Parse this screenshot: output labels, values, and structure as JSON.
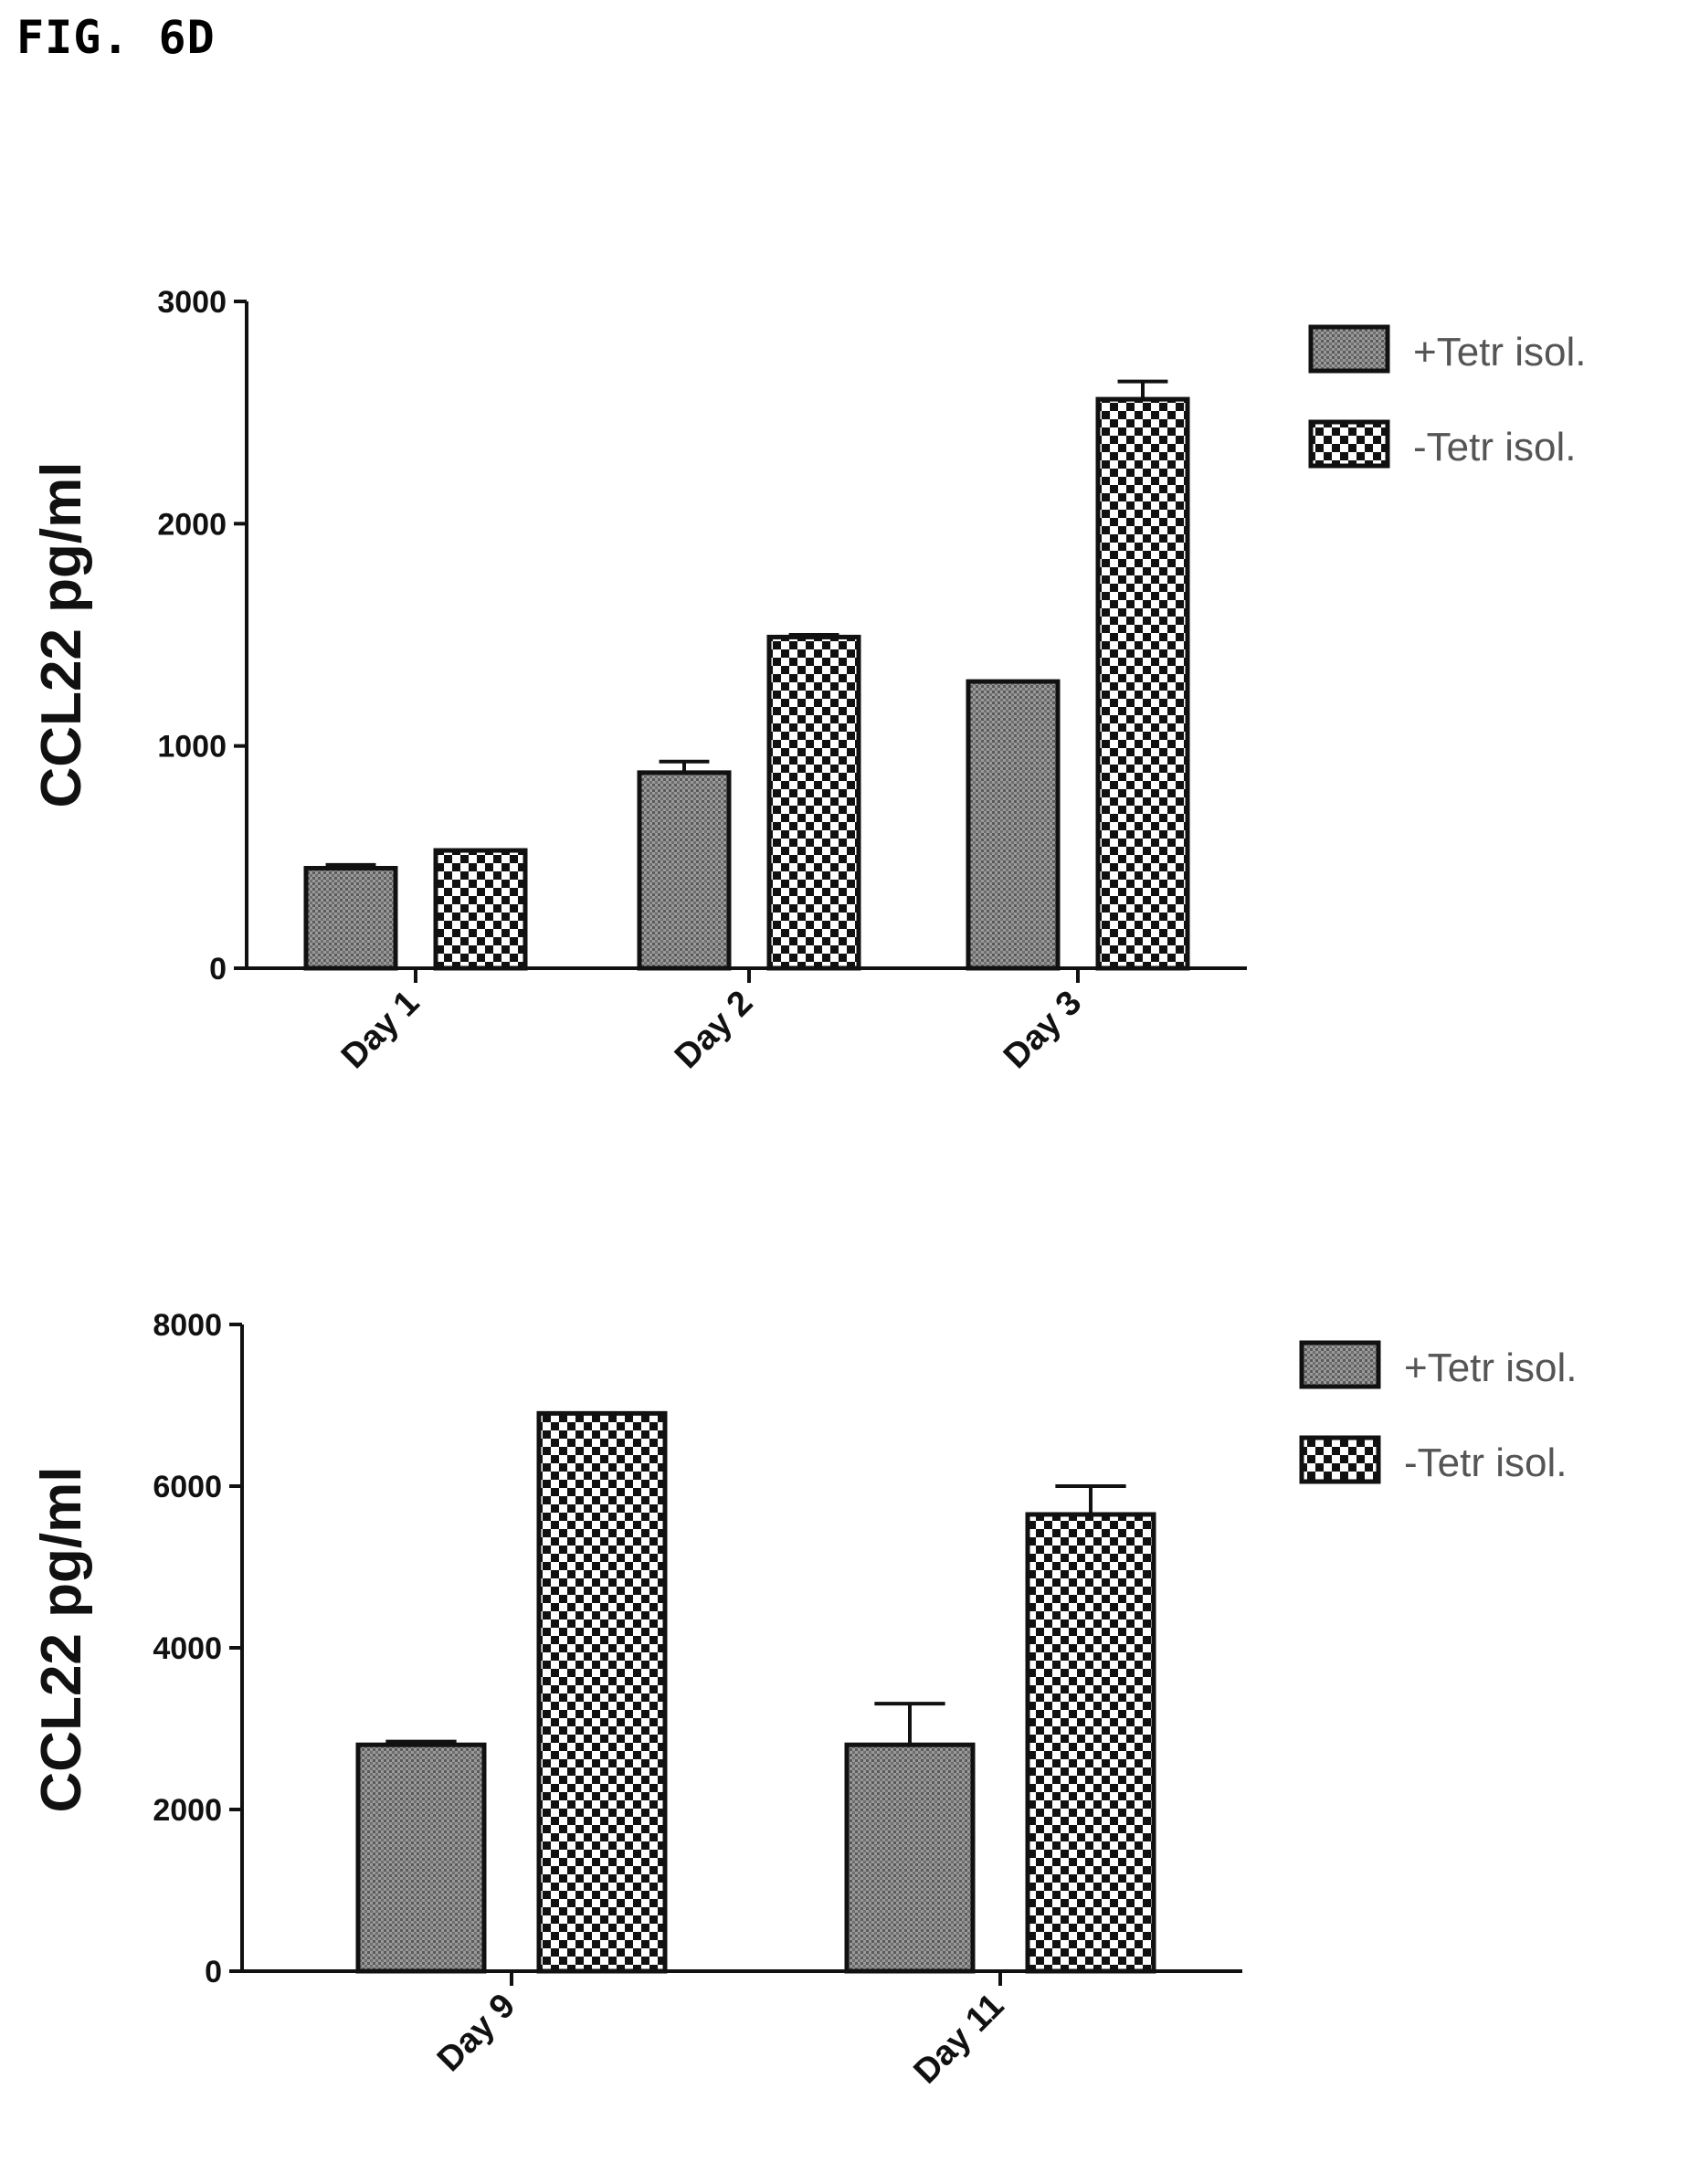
{
  "figure_title": "FIG. 6D",
  "chart_data": [
    {
      "type": "bar",
      "title": "",
      "xlabel": "",
      "ylabel": "CCL22 pg/ml",
      "ylim": [
        0,
        3000
      ],
      "yticks": [
        0,
        1000,
        2000,
        3000
      ],
      "categories": [
        "Day 1",
        "Day 2",
        "Day 3"
      ],
      "series": [
        {
          "name": "+Tetr isol.",
          "pattern": "fine",
          "values": [
            450,
            880,
            1290
          ],
          "errors": [
            15,
            50,
            0
          ]
        },
        {
          "name": "-Tetr isol.",
          "pattern": "checker",
          "values": [
            530,
            1490,
            2560
          ],
          "errors": [
            0,
            10,
            80
          ]
        }
      ],
      "legend_position": "top-right",
      "grid": false
    },
    {
      "type": "bar",
      "title": "",
      "xlabel": "",
      "ylabel": "CCL22 pg/ml",
      "ylim": [
        0,
        8000
      ],
      "yticks": [
        0,
        2000,
        4000,
        6000,
        8000
      ],
      "categories": [
        "Day 9",
        "Day 11"
      ],
      "series": [
        {
          "name": "+Tetr isol.",
          "pattern": "fine",
          "values": [
            2800,
            2800
          ],
          "errors": [
            40,
            510
          ]
        },
        {
          "name": "-Tetr isol.",
          "pattern": "checker",
          "values": [
            6900,
            5650
          ],
          "errors": [
            0,
            350
          ]
        }
      ],
      "legend_position": "top-right",
      "grid": false
    }
  ]
}
